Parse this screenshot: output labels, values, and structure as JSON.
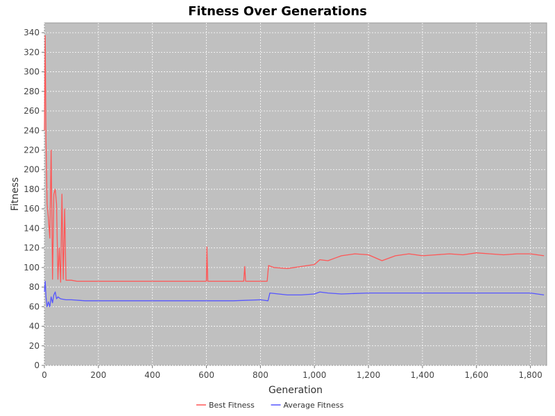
{
  "chart_data": {
    "type": "line",
    "title": "Fitness Over Generations",
    "xlabel": "Generation",
    "ylabel": "Fitness",
    "xlim": [
      0,
      1860
    ],
    "ylim": [
      0,
      350
    ],
    "grid": true,
    "legend_placement": "bottom-center",
    "x_ticks": [
      "0",
      "200",
      "400",
      "600",
      "800",
      "1,000",
      "1,200",
      "1,400",
      "1,600",
      "1,800"
    ],
    "y_ticks": [
      "0",
      "20",
      "40",
      "60",
      "80",
      "100",
      "120",
      "140",
      "160",
      "180",
      "200",
      "220",
      "240",
      "260",
      "280",
      "300",
      "320",
      "340"
    ],
    "x_tick_values": [
      0,
      200,
      400,
      600,
      800,
      1000,
      1200,
      1400,
      1600,
      1800
    ],
    "y_tick_values": [
      0,
      20,
      40,
      60,
      80,
      100,
      120,
      140,
      160,
      180,
      200,
      220,
      240,
      260,
      280,
      300,
      320,
      340
    ],
    "colors": {
      "plot_background": "#c0c0c0",
      "grid": "#ffffff"
    },
    "series": [
      {
        "name": "Best Fitness",
        "color": "#ff5555",
        "x": [
          0,
          3,
          6,
          10,
          15,
          20,
          25,
          30,
          35,
          40,
          45,
          50,
          55,
          60,
          65,
          70,
          75,
          80,
          85,
          90,
          100,
          120,
          150,
          200,
          300,
          400,
          500,
          600,
          602,
          605,
          700,
          738,
          742,
          745,
          800,
          825,
          830,
          850,
          900,
          950,
          1000,
          1020,
          1050,
          1080,
          1100,
          1150,
          1200,
          1250,
          1300,
          1350,
          1400,
          1450,
          1500,
          1550,
          1600,
          1650,
          1700,
          1750,
          1800,
          1850
        ],
        "y": [
          240,
          337,
          230,
          165,
          150,
          130,
          220,
          88,
          175,
          180,
          165,
          88,
          120,
          85,
          175,
          88,
          160,
          87,
          87,
          87,
          87,
          86,
          86,
          86,
          86,
          86,
          86,
          86,
          121,
          86,
          86,
          86,
          101,
          86,
          86,
          86,
          102,
          100,
          99,
          101,
          103,
          108,
          107,
          110,
          112,
          114,
          113,
          107,
          112,
          114,
          112,
          113,
          114,
          113,
          115,
          114,
          113,
          114,
          114,
          112
        ]
      },
      {
        "name": "Average Fitness",
        "color": "#5555ff",
        "x": [
          0,
          3,
          6,
          10,
          15,
          20,
          25,
          30,
          35,
          40,
          45,
          50,
          60,
          80,
          100,
          150,
          200,
          300,
          400,
          500,
          600,
          700,
          800,
          828,
          835,
          900,
          950,
          1000,
          1020,
          1050,
          1100,
          1200,
          1300,
          1400,
          1500,
          1600,
          1700,
          1800,
          1850
        ],
        "y": [
          75,
          86,
          70,
          60,
          65,
          60,
          70,
          64,
          72,
          75,
          68,
          70,
          68,
          67,
          67,
          66,
          66,
          66,
          66,
          66,
          66,
          66,
          67,
          66,
          74,
          72,
          72,
          73,
          75,
          74,
          73,
          74,
          74,
          74,
          74,
          74,
          74,
          74,
          72
        ]
      }
    ]
  }
}
